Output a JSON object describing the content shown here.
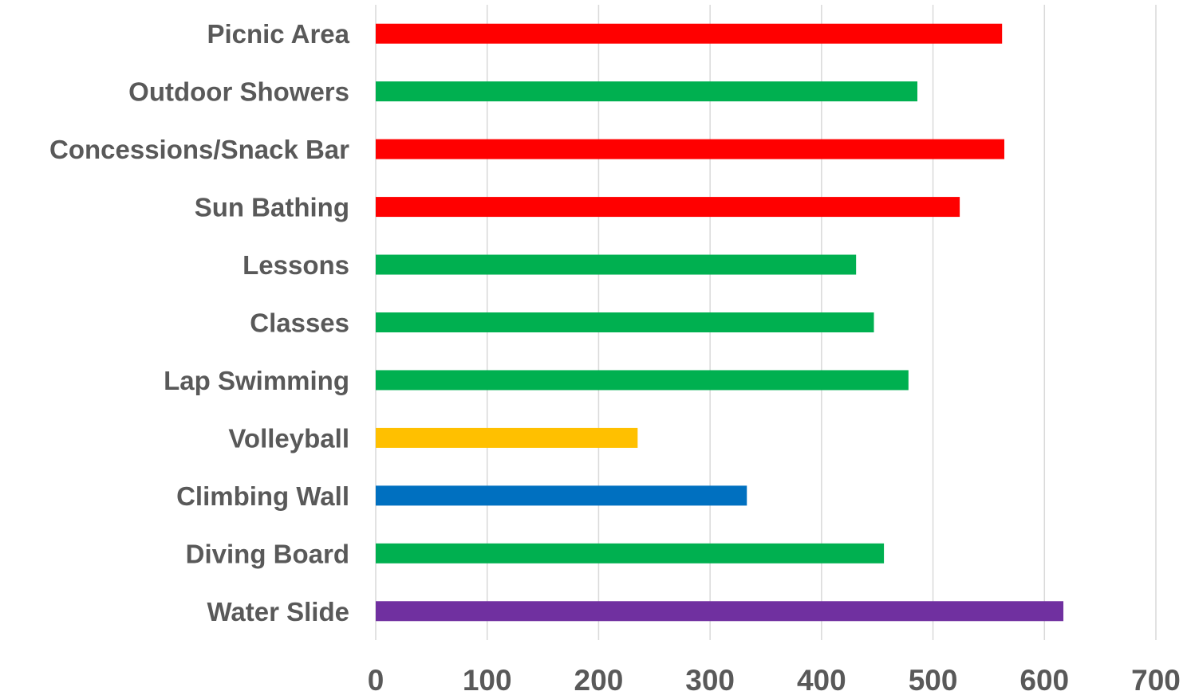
{
  "chart_data": {
    "type": "bar",
    "orientation": "horizontal",
    "title": "",
    "xlabel": "",
    "ylabel": "",
    "categories": [
      "Picnic Area",
      "Outdoor Showers",
      "Concessions/Snack Bar",
      "Sun Bathing",
      "Lessons",
      "Classes",
      "Lap Swimming",
      "Volleyball",
      "Climbing Wall",
      "Diving Board",
      "Water Slide"
    ],
    "values": [
      562,
      486,
      564,
      524,
      431,
      447,
      478,
      235,
      333,
      456,
      617
    ],
    "colors": [
      "#ff0000",
      "#00b050",
      "#ff0000",
      "#ff0000",
      "#00b050",
      "#00b050",
      "#00b050",
      "#ffc000",
      "#0070c0",
      "#00b050",
      "#7030a0"
    ],
    "xlim": [
      0,
      700
    ],
    "xticks": [
      0,
      100,
      200,
      300,
      400,
      500,
      600,
      700
    ],
    "grid": "vertical",
    "legend": "none"
  }
}
